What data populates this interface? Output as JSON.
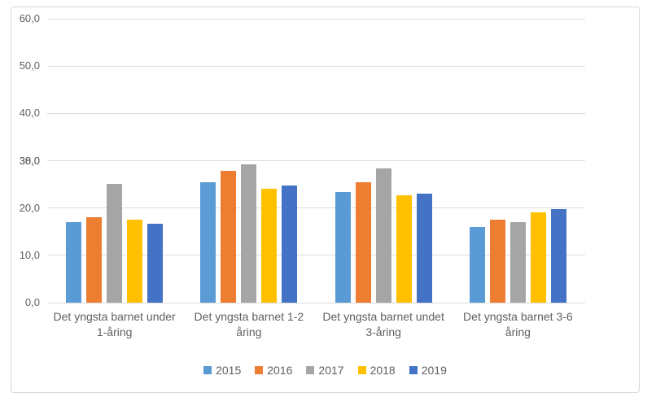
{
  "chart_data": {
    "type": "bar",
    "title": "",
    "categories": [
      "Det yngsta barnet under 1-åring",
      "Det yngsta barnet 1-2 åring",
      "Det yngsta barnet undet 3-åring",
      "Det yngsta barnet 3-6 åring"
    ],
    "series": [
      {
        "name": "2015",
        "color": "#5B9BD5",
        "values": [
          17.0,
          25.5,
          23.4,
          16.0
        ]
      },
      {
        "name": "2016",
        "color": "#ED7D31",
        "values": [
          18.0,
          27.9,
          25.4,
          17.6
        ]
      },
      {
        "name": "2017",
        "color": "#A5A5A5",
        "values": [
          25.1,
          29.2,
          28.3,
          17.0
        ]
      },
      {
        "name": "2018",
        "color": "#FFC000",
        "values": [
          17.6,
          24.0,
          22.7,
          19.0
        ]
      },
      {
        "name": "2019",
        "color": "#4472C4",
        "values": [
          16.6,
          24.7,
          23.0,
          19.8
        ]
      }
    ],
    "y_axis": {
      "min": 0,
      "max": 60,
      "step": 10,
      "tick_labels": [
        "0,0",
        "10,0",
        "20,0",
        "30,0",
        "40,0",
        "50,0",
        "60,0"
      ]
    },
    "y_axis_overlap_artifact": {
      "at_value": 30,
      "text": "38,0"
    },
    "xlabel": "",
    "ylabel": "",
    "grid": true,
    "legend_position": "bottom"
  },
  "colors": {
    "gridline": "#dcdcdc",
    "frame_border": "#d7d7d7",
    "axis_text": "#5f5f5f",
    "background": "#ffffff"
  }
}
